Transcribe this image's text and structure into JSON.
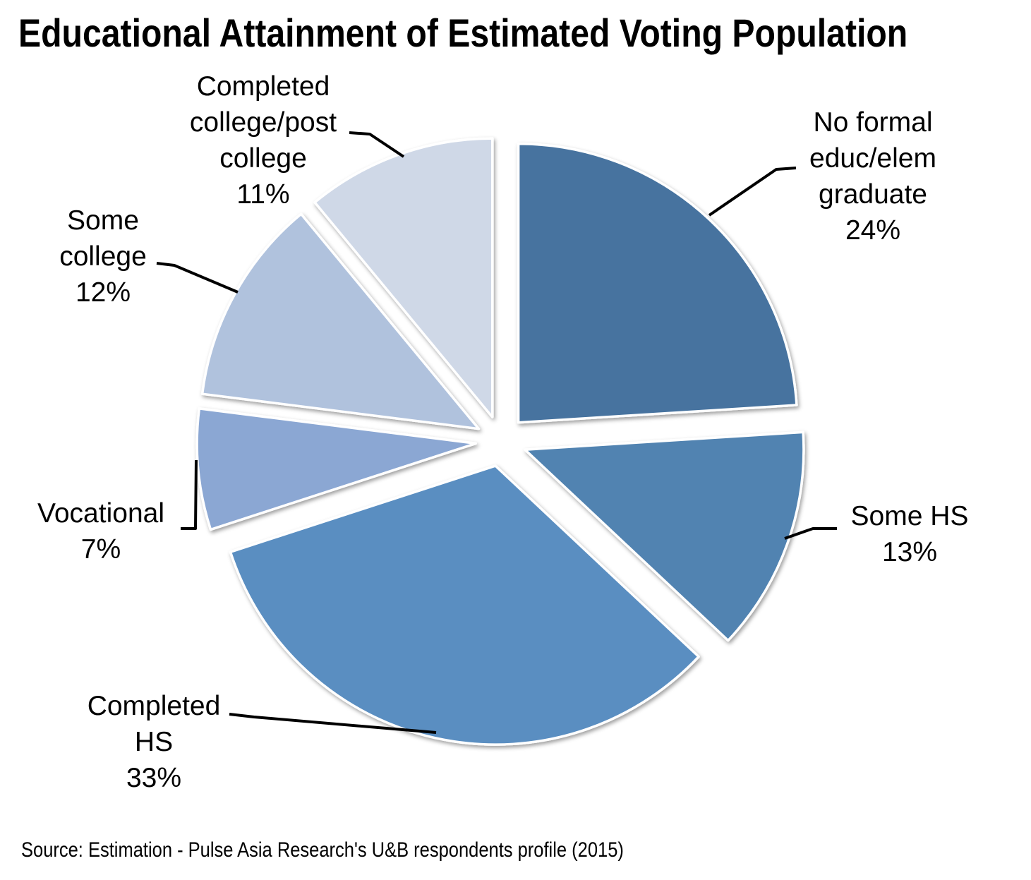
{
  "chart_data": {
    "type": "pie",
    "title": "Educational Attainment of Estimated Voting Population",
    "source_note": "Source: Estimation - Pulse Asia Research's U&B respondents profile (2015)",
    "units": "percent",
    "start_angle_deg": 0,
    "direction": "clockwise",
    "background": "#FFFFFF",
    "text_color": "#000000",
    "legend": "none",
    "slices": [
      {
        "label": "No formal educ/elem graduate",
        "value": 24,
        "color": "#46739F",
        "label_display": "No formal\neduc/elem\ngraduate\n24%"
      },
      {
        "label": "Some HS",
        "value": 13,
        "color": "#5183B1",
        "label_display": "Some HS\n13%"
      },
      {
        "label": "Completed HS",
        "value": 33,
        "color": "#5A8EC1",
        "label_display": "Completed\nHS\n33%"
      },
      {
        "label": "Vocational",
        "value": 7,
        "color": "#8BA7D3",
        "label_display": "Vocational\n7%"
      },
      {
        "label": "Some college",
        "value": 12,
        "color": "#B0C2DD",
        "label_display": "Some\ncollege\n12%"
      },
      {
        "label": "Completed college/post college",
        "value": 11,
        "color": "#CFD8E7",
        "label_display": "Completed\ncollege/post\ncollege\n11%"
      }
    ]
  }
}
